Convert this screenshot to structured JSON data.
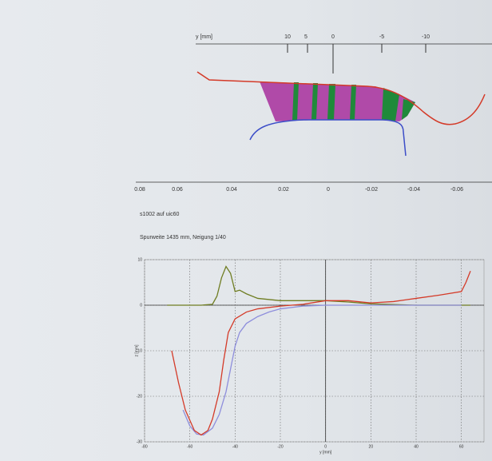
{
  "profile": {
    "y_axis_label": "y [mm]",
    "y_ticks": [
      "10",
      "5",
      "0",
      "-5",
      "-10"
    ],
    "scale_ticks": [
      "0.08",
      "0.06",
      "0.04",
      "0.02",
      "0",
      "-0.02",
      "-0.04",
      "-0.06"
    ],
    "caption": "s1002  auf  uic60",
    "subcaption": "Spurweite 1435 mm, Neigung 1/40"
  },
  "chart_data": {
    "type": "line",
    "xlabel": "y [mm]",
    "ylabel": "z [mm]",
    "xlim": [
      -80,
      70
    ],
    "ylim": [
      -30,
      10
    ],
    "xticks": [
      -80,
      -60,
      -40,
      -20,
      0,
      20,
      40,
      60
    ],
    "yticks": [
      10,
      0,
      -10,
      -20,
      -30
    ],
    "grid": true,
    "series": [
      {
        "color": "#6f7d22",
        "x": [
          -70,
          -55,
          -50,
          -48,
          -46,
          -44,
          -42,
          -40,
          -38,
          -35,
          -30,
          -20,
          0,
          10,
          20,
          40,
          60,
          64
        ],
        "values": [
          0,
          0,
          0.2,
          2,
          6,
          8.5,
          7,
          3,
          3.3,
          2.5,
          1.5,
          1,
          1,
          0.7,
          0.3,
          0,
          0,
          0
        ]
      },
      {
        "color": "#8e8edc",
        "x": [
          -63,
          -60,
          -57,
          -54,
          -50,
          -47,
          -44,
          -42,
          -40,
          -38,
          -35,
          -30,
          -25,
          -20,
          -10,
          0,
          20,
          40,
          60
        ],
        "values": [
          -23,
          -26.5,
          -28.3,
          -28.5,
          -27,
          -24,
          -19,
          -14,
          -9,
          -6,
          -4,
          -2.5,
          -1.5,
          -0.8,
          -0.2,
          0,
          0,
          0,
          0
        ]
      },
      {
        "color": "#d43a28",
        "x": [
          -68,
          -65,
          -62,
          -58,
          -55,
          -52,
          -50,
          -47,
          -45,
          -43,
          -40,
          -35,
          -30,
          -20,
          -10,
          0,
          10,
          20,
          30,
          40,
          50,
          60,
          62,
          64
        ],
        "values": [
          -10,
          -17,
          -23,
          -27.5,
          -28.5,
          -27.5,
          -25,
          -19,
          -12,
          -6,
          -3,
          -1.5,
          -0.8,
          -0.2,
          0.2,
          1,
          1,
          0.5,
          0.8,
          1.5,
          2.2,
          3,
          5,
          7.5
        ]
      }
    ]
  }
}
